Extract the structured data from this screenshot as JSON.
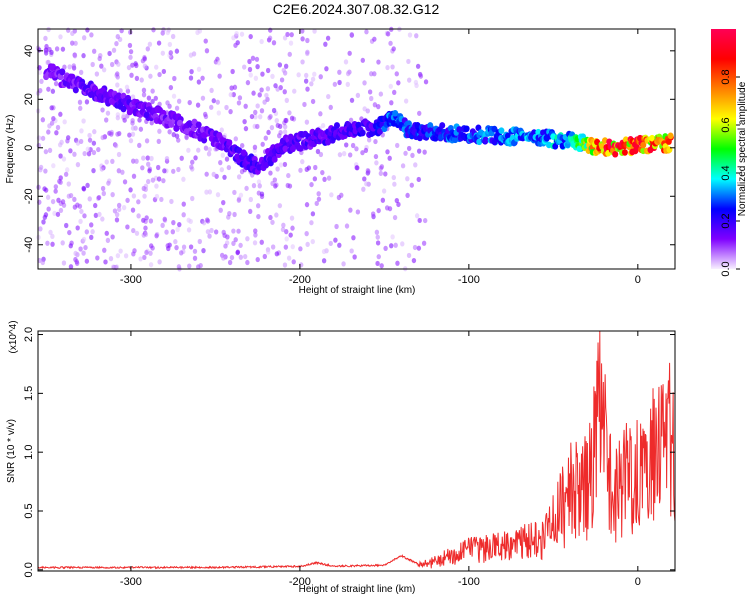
{
  "title": "C2E6.2024.307.08.32.G12",
  "colors": {
    "snr_line": "#ee2b2b",
    "axes": "#000000",
    "colorbar": [
      "#ff0055",
      "#ff0000",
      "#ff7f00",
      "#ffff00",
      "#00ff00",
      "#00ffff",
      "#0000ff",
      "#7f00ff",
      "#f8f0ff"
    ]
  },
  "chart_data": [
    {
      "type": "heatmap",
      "xlabel": "Height of straight line (km)",
      "ylabel": "Frequency (Hz)",
      "xlim": [
        -355,
        22
      ],
      "ylim": [
        -50,
        49
      ],
      "x_ticks": [
        -300,
        -200,
        -100,
        0
      ],
      "y_ticks": [
        -40,
        -20,
        0,
        20,
        40
      ],
      "x_tick_labels": [
        "-300",
        "-200",
        "-100",
        "0"
      ],
      "y_tick_labels": [
        "-40",
        "-20",
        "0",
        "20",
        "40"
      ],
      "colorbar": {
        "label": "Normalized spectral amplitude",
        "range": [
          0,
          1
        ],
        "ticks": [
          0.0,
          0.2,
          0.4,
          0.6,
          0.8
        ],
        "tick_labels": [
          "0.0",
          "0.2",
          "0.4",
          "0.6",
          "0.8"
        ]
      },
      "ridge": {
        "x": [
          -350,
          -330,
          -310,
          -290,
          -270,
          -250,
          -235,
          -225,
          -210,
          -190,
          -170,
          -155,
          -145,
          -135,
          -110,
          -80,
          -60,
          -40,
          -20,
          0,
          20
        ],
        "y": [
          32,
          25,
          20,
          15,
          10,
          4,
          -4,
          -8,
          1,
          4,
          8,
          8,
          13,
          7,
          6,
          5,
          4,
          3,
          0,
          1,
          2
        ],
        "amplitude": [
          0.15,
          0.18,
          0.18,
          0.18,
          0.15,
          0.18,
          0.22,
          0.2,
          0.2,
          0.2,
          0.22,
          0.25,
          0.35,
          0.3,
          0.32,
          0.35,
          0.38,
          0.42,
          0.95,
          0.95,
          0.85
        ]
      },
      "grid": false
    },
    {
      "type": "line",
      "xlabel": "Height of straight line (km)",
      "ylabel": "SNR (10 * v/v)",
      "y_multiplier": "(x10^4)",
      "xlim": [
        -355,
        22
      ],
      "ylim": [
        -0.01,
        2.03
      ],
      "x_ticks": [
        -300,
        -200,
        -100,
        0
      ],
      "y_ticks": [
        0.0,
        0.5,
        1.0,
        1.5,
        2.0
      ],
      "x_tick_labels": [
        "-300",
        "-200",
        "-100",
        "0"
      ],
      "y_tick_labels": [
        "0.0",
        "0.5",
        "1.0",
        "1.5",
        "2.0"
      ],
      "series": [
        {
          "x": [
            -355,
            -300,
            -250,
            -200,
            -190,
            -180,
            -150,
            -140,
            -130,
            -120,
            -100,
            -80,
            -60,
            -50,
            -40,
            -30,
            -25,
            -22,
            -15,
            -10,
            0,
            10,
            15,
            20
          ],
          "y": [
            0.02,
            0.02,
            0.02,
            0.03,
            0.06,
            0.03,
            0.04,
            0.12,
            0.05,
            0.1,
            0.25,
            0.3,
            0.4,
            0.6,
            1.0,
            1.05,
            1.6,
            2.0,
            0.9,
            1.1,
            1.3,
            1.45,
            1.55,
            1.6
          ]
        }
      ],
      "grid": false
    }
  ]
}
